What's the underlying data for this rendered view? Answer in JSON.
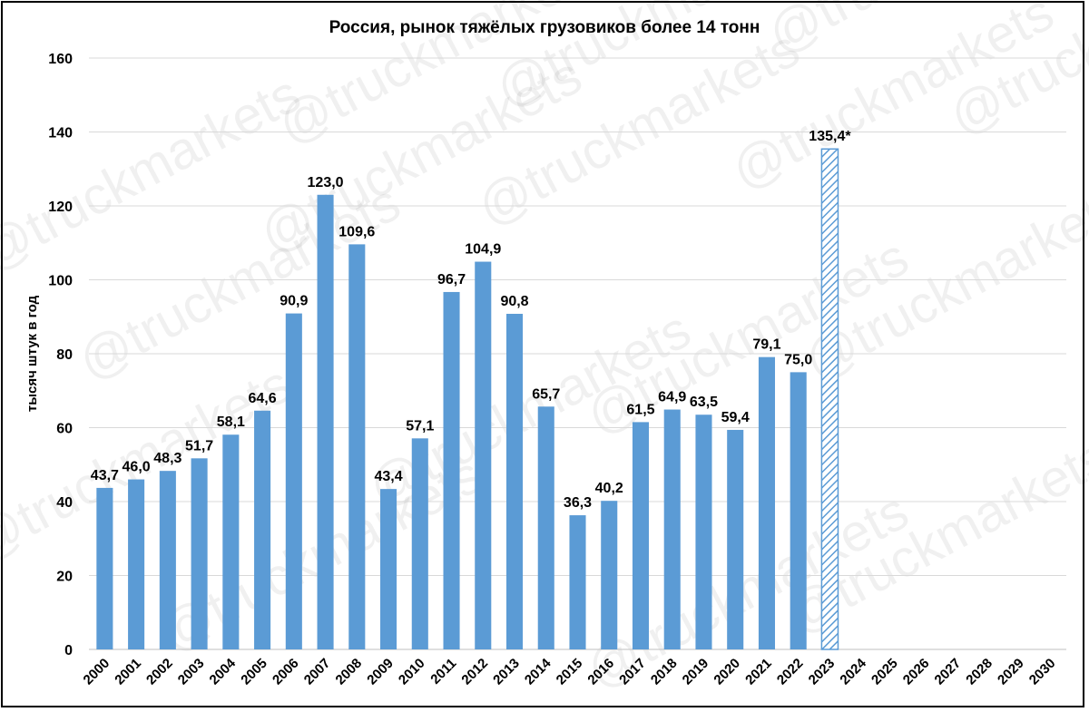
{
  "chart_data": {
    "type": "bar",
    "title": "Россия, рынок тяжёлых грузовиков более 14 тонн",
    "ylabel": "тысяч штук в год",
    "xlabel": "",
    "ylim": [
      0,
      160
    ],
    "yticks": [
      0,
      20,
      40,
      60,
      80,
      100,
      120,
      140,
      160
    ],
    "grid": true,
    "categories": [
      "2000",
      "2001",
      "2002",
      "2003",
      "2004",
      "2005",
      "2006",
      "2007",
      "2008",
      "2009",
      "2010",
      "2011",
      "2012",
      "2013",
      "2014",
      "2015",
      "2016",
      "2017",
      "2018",
      "2019",
      "2020",
      "2021",
      "2022",
      "2023",
      "2024",
      "2025",
      "2026",
      "2027",
      "2028",
      "2029",
      "2030"
    ],
    "values": [
      43.7,
      46.0,
      48.3,
      51.7,
      58.1,
      64.6,
      90.9,
      123.0,
      109.6,
      43.4,
      57.1,
      96.7,
      104.9,
      90.8,
      65.7,
      36.3,
      40.2,
      61.5,
      64.9,
      63.5,
      59.4,
      79.1,
      75.0,
      135.4,
      null,
      null,
      null,
      null,
      null,
      null,
      null
    ],
    "data_labels": [
      "43,7",
      "46,0",
      "48,3",
      "51,7",
      "58,1",
      "64,6",
      "90,9",
      "123,0",
      "109,6",
      "43,4",
      "57,1",
      "96,7",
      "104,9",
      "90,8",
      "65,7",
      "36,3",
      "40,2",
      "61,5",
      "64,9",
      "63,5",
      "59,4",
      "79,1",
      "75,0",
      "135,4*",
      "",
      "",
      "",
      "",
      "",
      "",
      ""
    ],
    "forecast_index": 23,
    "colors": {
      "bar": "#5b9bd5",
      "forecast_stripe": "#5b9bd5",
      "grid": "#d9d9d9"
    },
    "watermark": "@truckmarkets"
  }
}
